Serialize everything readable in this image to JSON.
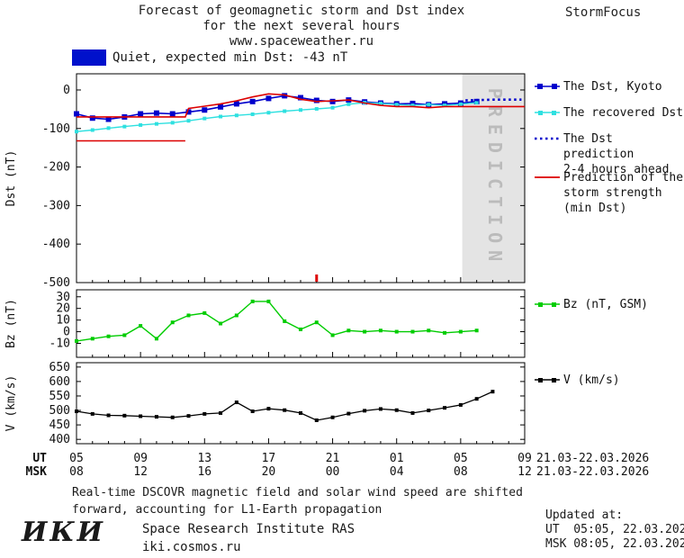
{
  "header": {
    "line1": "Forecast of geomagnetic storm and Dst index",
    "line2": "for the next several hours",
    "line3": "www.spaceweather.ru",
    "brand": "StormFocus"
  },
  "status": {
    "text": "Quiet, expected min Dst: -43 nT"
  },
  "colors": {
    "kyoto": "#0000cc",
    "recovered": "#2ee0e0",
    "prediction": "#0000cc",
    "storm": "#dd0000",
    "bz": "#00cc00",
    "v": "#000000",
    "status_box": "#0011cc",
    "band": "#e4e4e4",
    "band_text": "#bbbbbb"
  },
  "legend": {
    "dst_kyoto": "The Dst, Kyoto",
    "recovered": "The recovered Dst",
    "prediction_l1": "The Dst prediction",
    "prediction_l2": "2-4 hours ahead",
    "storm_l1": "Prediction of the",
    "storm_l2": "storm strength",
    "storm_l3": "(min Dst)",
    "bz": "Bz (nT, GSM)",
    "v": "V (km/s)"
  },
  "footer": {
    "line1": "Real-time DSCOVR magnetic field and solar wind speed are shifted",
    "line2": "forward, accounting for L1-Earth propagation"
  },
  "updated": {
    "title": "Updated at:",
    "ut": "UT  05:05, 22.03.2026",
    "msk": "MSK 08:05, 22.03.2026"
  },
  "institute": {
    "logo": "ИКИ",
    "name": "Space Research Institute RAS",
    "url": "iki.cosmos.ru"
  },
  "xaxis": {
    "range": [
      5,
      33
    ],
    "major_hours": [
      5,
      9,
      13,
      17,
      21,
      25,
      29,
      33
    ],
    "ut_labels": [
      "05",
      "09",
      "13",
      "17",
      "21",
      "01",
      "05",
      "09"
    ],
    "msk_labels": [
      "08",
      "12",
      "16",
      "20",
      "00",
      "04",
      "08",
      "12"
    ],
    "ut_row_label": "UT",
    "msk_row_label": "MSK",
    "ut_date": "21.03-22.03.2026",
    "msk_date": "21.03-22.03.2026"
  },
  "chart_data": [
    {
      "type": "line",
      "panel": "dst",
      "ylabel": "Dst (nT)",
      "ylim": [
        -500,
        42
      ],
      "yticks": [
        0,
        -100,
        -200,
        -300,
        -400,
        -500
      ],
      "ytick_labels": [
        "0",
        "-100",
        "-200",
        "-300",
        "-400",
        "-500"
      ],
      "prediction_band": {
        "from": 29.1,
        "to": 33,
        "label": "PREDICTION"
      },
      "onset_marker_hour": 20,
      "series": [
        {
          "name": "The Dst, Kyoto",
          "color": "#0000cc",
          "marker": "square",
          "ms": 6,
          "lw": 1.6,
          "x": [
            5,
            6,
            7,
            8,
            9,
            10,
            11,
            12,
            13,
            14,
            15,
            16,
            17,
            18,
            19,
            20,
            21,
            22,
            23,
            24,
            25,
            26,
            27,
            28,
            29,
            30
          ],
          "y": [
            -62,
            -73,
            -76,
            -70,
            -62,
            -60,
            -62,
            -57,
            -52,
            -44,
            -36,
            -30,
            -22,
            -15,
            -20,
            -27,
            -30,
            -26,
            -31,
            -34,
            -36,
            -35,
            -38,
            -36,
            -34,
            -30
          ]
        },
        {
          "name": "The recovered Dst",
          "color": "#2ee0e0",
          "marker": "square",
          "ms": 4,
          "lw": 1.4,
          "x": [
            5,
            6,
            7,
            8,
            9,
            10,
            11,
            12,
            13,
            14,
            15,
            16,
            17,
            18,
            19,
            20,
            21,
            22,
            23,
            24,
            25,
            26,
            27,
            28,
            29,
            30
          ],
          "y": [
            -108,
            -104,
            -99,
            -95,
            -91,
            -88,
            -85,
            -80,
            -74,
            -69,
            -66,
            -63,
            -59,
            -55,
            -52,
            -49,
            -46,
            -37,
            -33,
            -35,
            -38,
            -40,
            -38,
            -40,
            -37,
            -33
          ]
        },
        {
          "name": "The Dst prediction 2-4 hours ahead",
          "color": "#0000cc",
          "lw": 2.6,
          "dash": "2.5 3.5",
          "x": [
            29.3,
            30.2,
            31.1,
            32.0,
            32.8
          ],
          "y": [
            -27,
            -26,
            -25,
            -25,
            -25
          ]
        },
        {
          "name": "Prediction of the storm strength (min Dst)",
          "color": "#dd0000",
          "lw": 1.6,
          "segments": [
            [
              [
                5,
                -132
              ],
              [
                11.8,
                -132
              ]
            ],
            [
              [
                5,
                -70
              ],
              [
                11.8,
                -70
              ],
              [
                12,
                -48
              ],
              [
                13,
                -42
              ],
              [
                14,
                -36
              ],
              [
                15,
                -28
              ],
              [
                16,
                -18
              ],
              [
                17,
                -10
              ],
              [
                18,
                -13
              ],
              [
                19,
                -24
              ],
              [
                20,
                -30
              ],
              [
                21,
                -28
              ],
              [
                22,
                -26
              ],
              [
                23,
                -34
              ],
              [
                24,
                -40
              ],
              [
                25,
                -43
              ],
              [
                26,
                -43
              ],
              [
                27,
                -46
              ],
              [
                28,
                -43
              ],
              [
                29,
                -43
              ],
              [
                33,
                -43
              ]
            ]
          ]
        }
      ]
    },
    {
      "type": "line",
      "panel": "bz",
      "ylabel": "Bz (nT)",
      "ylim": [
        -22,
        36
      ],
      "yticks": [
        30,
        20,
        10,
        0,
        -10
      ],
      "ytick_labels": [
        "30",
        "20",
        "10",
        "0",
        "-10"
      ],
      "series": [
        {
          "name": "Bz (nT, GSM)",
          "color": "#00cc00",
          "marker": "square",
          "ms": 4,
          "lw": 1.4,
          "x": [
            5,
            6,
            7,
            8,
            9,
            10,
            11,
            12,
            13,
            14,
            15,
            16,
            17,
            18,
            19,
            20,
            21,
            22,
            23,
            24,
            25,
            26,
            27,
            28,
            29,
            30
          ],
          "y": [
            -8,
            -6,
            -4,
            -3,
            5,
            -6,
            8,
            14,
            16,
            7,
            14,
            26,
            26,
            9,
            2,
            8,
            -3,
            1,
            0,
            1,
            0,
            0,
            1,
            -1,
            0,
            1
          ]
        }
      ]
    },
    {
      "type": "line",
      "panel": "v",
      "ylabel": "V (km/s)",
      "ylim": [
        385,
        665
      ],
      "yticks": [
        650,
        600,
        550,
        500,
        450,
        400
      ],
      "ytick_labels": [
        "650",
        "600",
        "550",
        "500",
        "450",
        "400"
      ],
      "series": [
        {
          "name": "V (km/s)",
          "color": "#000000",
          "marker": "square",
          "ms": 4,
          "lw": 1.3,
          "x": [
            5,
            6,
            7,
            8,
            9,
            10,
            11,
            12,
            13,
            14,
            15,
            16,
            17,
            18,
            19,
            20,
            21,
            22,
            23,
            24,
            25,
            26,
            27,
            28,
            29,
            30,
            31
          ],
          "y": [
            497,
            488,
            483,
            482,
            480,
            478,
            476,
            481,
            488,
            491,
            528,
            497,
            506,
            501,
            491,
            466,
            476,
            489,
            499,
            505,
            501,
            491,
            500,
            509,
            519,
            540,
            565
          ]
        }
      ]
    }
  ]
}
